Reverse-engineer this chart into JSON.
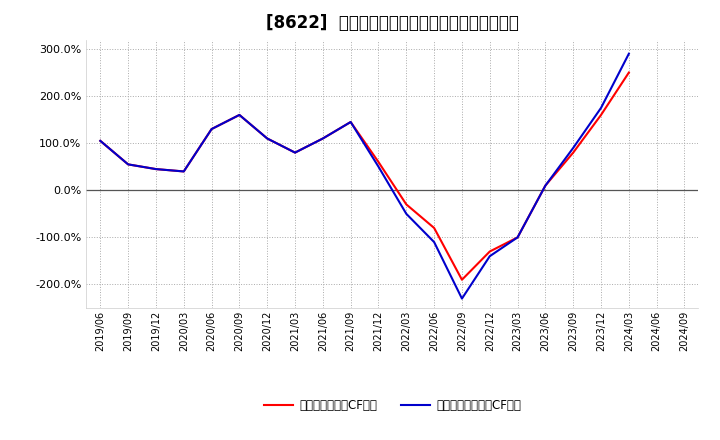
{
  "title": "[8622]  有利子負債キャッシュフロー比率の推移",
  "legend_operating": "有利子負債営業CF比率",
  "legend_free": "有利子負債フリーCF比率",
  "x_labels": [
    "2019/06",
    "2019/09",
    "2019/12",
    "2020/03",
    "2020/06",
    "2020/09",
    "2020/12",
    "2021/03",
    "2021/06",
    "2021/09",
    "2021/12",
    "2022/03",
    "2022/06",
    "2022/09",
    "2022/12",
    "2023/03",
    "2023/06",
    "2023/09",
    "2023/12",
    "2024/03",
    "2024/06",
    "2024/09"
  ],
  "operating_cf": [
    105,
    55,
    45,
    40,
    130,
    160,
    110,
    80,
    110,
    145,
    60,
    -30,
    -80,
    -190,
    -130,
    -100,
    10,
    80,
    160,
    250,
    null,
    null
  ],
  "free_cf": [
    105,
    55,
    45,
    40,
    130,
    160,
    110,
    80,
    110,
    145,
    50,
    -50,
    -110,
    -230,
    -140,
    -100,
    10,
    90,
    175,
    290,
    null,
    null
  ],
  "ylim": [
    -250,
    320
  ],
  "yticks": [
    -200,
    -100,
    0,
    100,
    200,
    300
  ],
  "color_operating": "#ff0000",
  "color_free": "#0000cc",
  "background_color": "#ffffff",
  "plot_bg_color": "#ffffff",
  "grid_color": "#aaaaaa",
  "title_fontsize": 12
}
